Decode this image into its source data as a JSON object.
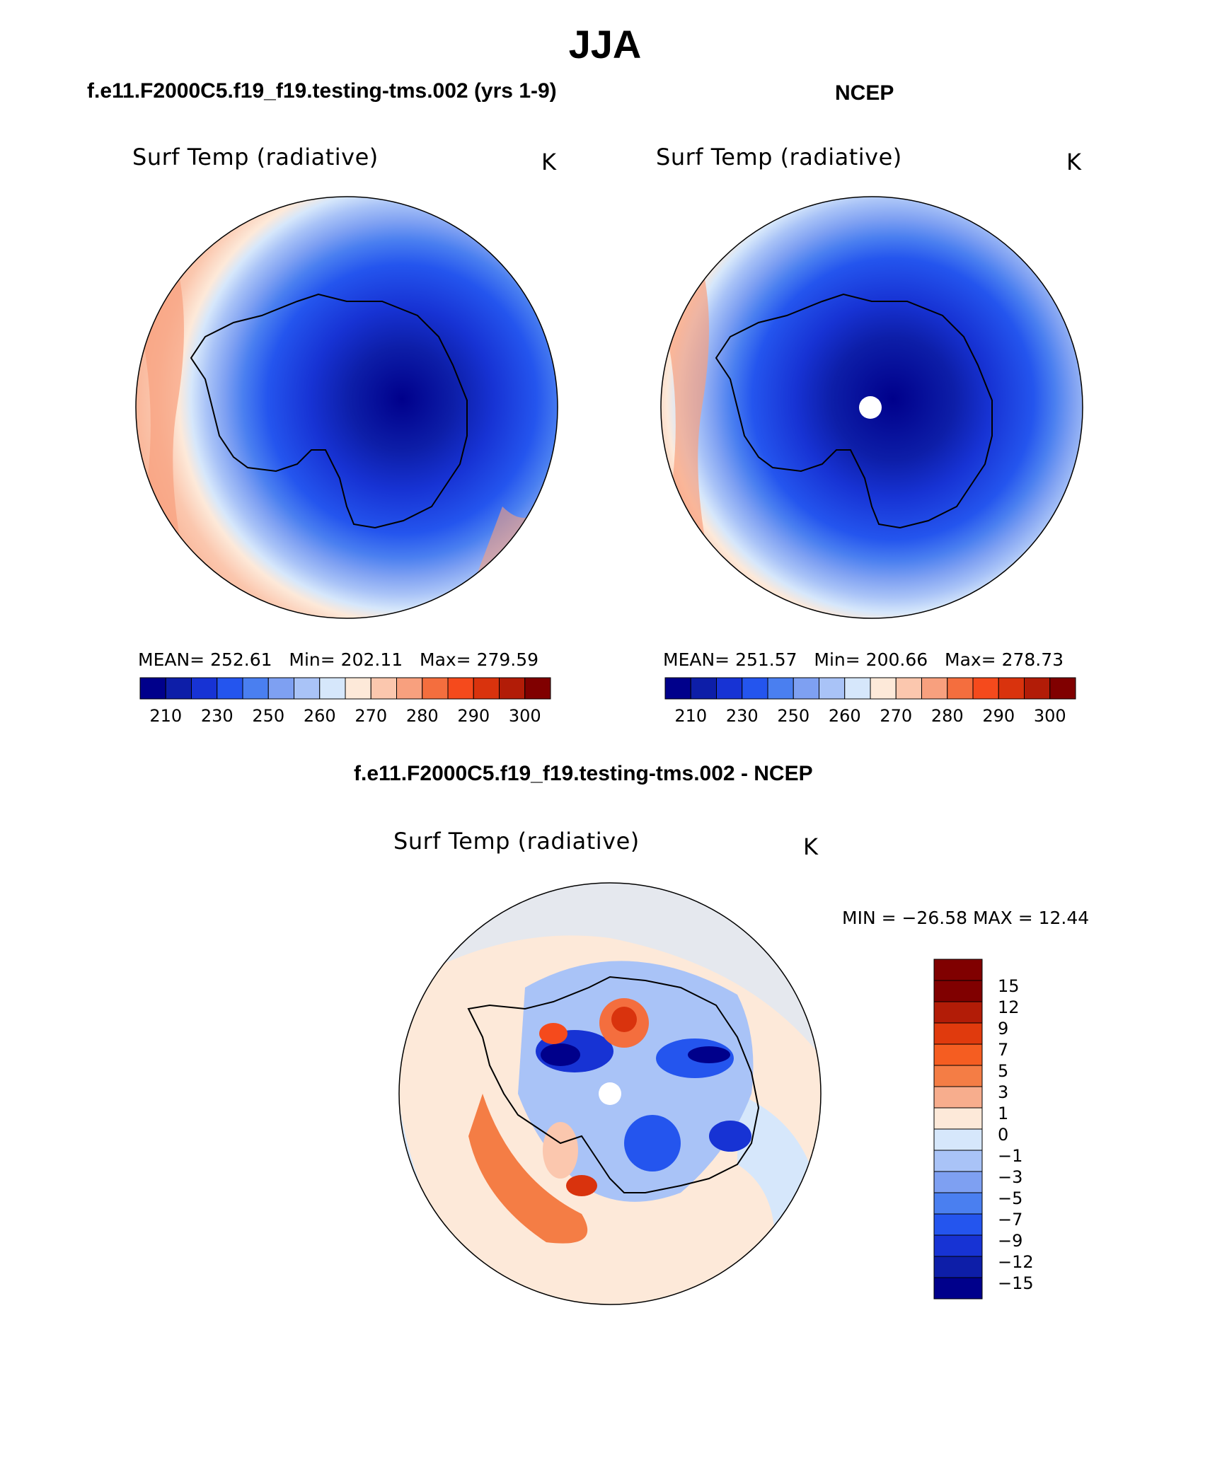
{
  "page_title": "JJA",
  "panels": {
    "model": {
      "heading": "f.e11.F2000C5.f19_f19.testing-tms.002 (yrs 1-9)",
      "variable": "Surf Temp (radiative)",
      "units": "K",
      "mean_label": "MEAN=",
      "mean_value": "252.61",
      "min_label": "Min=",
      "min_value": "202.11",
      "max_label": "Max=",
      "max_value": "279.59"
    },
    "obs": {
      "heading": "NCEP",
      "variable": "Surf Temp (radiative)",
      "units": "K",
      "mean_label": "MEAN=",
      "mean_value": "251.57",
      "min_label": "Min=",
      "min_value": "200.66",
      "max_label": "Max=",
      "max_value": "278.73"
    },
    "diff": {
      "heading": "f.e11.F2000C5.f19_f19.testing-tms.002 - NCEP",
      "variable": "Surf Temp (radiative)",
      "units": "K",
      "minmax": "MIN = −26.58 MAX =   12.44"
    }
  },
  "colorbar_abs": {
    "colors": [
      "#00008b",
      "#0d1ea8",
      "#1733d4",
      "#2455ee",
      "#4a7ff0",
      "#7ea0f2",
      "#a9c3f7",
      "#d6e7fb",
      "#fde9d9",
      "#fbc7ae",
      "#f8a07e",
      "#f46e3e",
      "#f54a1c",
      "#d9330d",
      "#b21c07",
      "#800000"
    ],
    "ticks": [
      "210",
      "230",
      "250",
      "260",
      "270",
      "280",
      "290",
      "300"
    ]
  },
  "colorbar_diff": {
    "colors": [
      "#800000",
      "#b21c07",
      "#e03a0d",
      "#f55d21",
      "#f47d45",
      "#f7ad8d",
      "#fde9d9",
      "#d6e7fb",
      "#a9c3f7",
      "#7ea0f2",
      "#4a7ff0",
      "#2455ee",
      "#1733d4",
      "#0d1ea8",
      "#00008b"
    ],
    "ticks": [
      "15",
      "12",
      "9",
      "7",
      "5",
      "3",
      "1",
      "0",
      "−1",
      "−3",
      "−5",
      "−7",
      "−9",
      "−12",
      "−15"
    ]
  }
}
